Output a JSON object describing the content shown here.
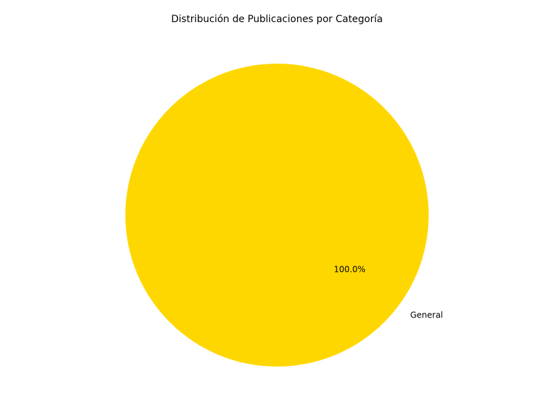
{
  "chart_data": {
    "type": "pie",
    "title": "Distribución de Publicaciones por Categoría",
    "categories": [
      "General"
    ],
    "values": [
      100
    ],
    "percent_labels": [
      "100.0%"
    ],
    "colors": [
      "#FFD700"
    ]
  }
}
